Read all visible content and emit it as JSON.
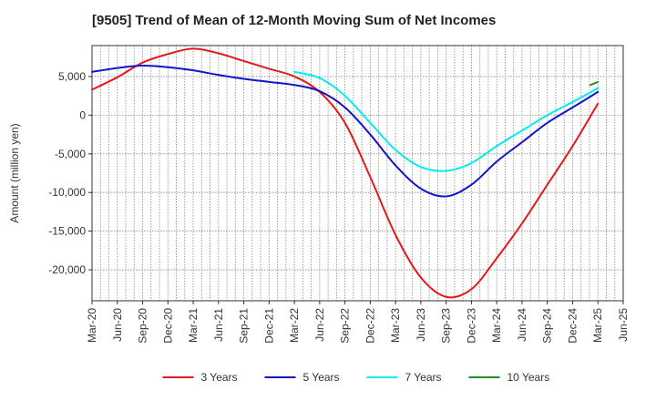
{
  "chart_data": {
    "type": "line",
    "title": "[9505]  Trend of Mean of 12-Month Moving Sum of Net Incomes",
    "ylabel": "Amount (million yen)",
    "xlabel": "",
    "ylim": [
      -24000,
      9000
    ],
    "yticks": [
      5000,
      0,
      -5000,
      -10000,
      -15000,
      -20000
    ],
    "ytick_labels": [
      "5,000",
      "0",
      "-5,000",
      "-10,000",
      "-15,000",
      "-20,000"
    ],
    "x_categories": [
      "Mar-20",
      "Jun-20",
      "Sep-20",
      "Dec-20",
      "Mar-21",
      "Jun-21",
      "Sep-21",
      "Dec-21",
      "Mar-22",
      "Jun-22",
      "Sep-22",
      "Dec-22",
      "Mar-23",
      "Jun-23",
      "Sep-23",
      "Dec-23",
      "Mar-24",
      "Jun-24",
      "Sep-24",
      "Dec-24",
      "Mar-25",
      "Jun-25"
    ],
    "grid": true,
    "legend_position": "bottom",
    "series": [
      {
        "name": "3 Years",
        "color": "#e31a1c",
        "points": [
          [
            0,
            3300
          ],
          [
            1,
            4900
          ],
          [
            2,
            6800
          ],
          [
            3,
            7900
          ],
          [
            4,
            8600
          ],
          [
            5,
            8000
          ],
          [
            6,
            7000
          ],
          [
            7,
            6000
          ],
          [
            8,
            5000
          ],
          [
            9,
            3000
          ],
          [
            10,
            -1000
          ],
          [
            11,
            -8000
          ],
          [
            12,
            -15500
          ],
          [
            13,
            -21000
          ],
          [
            14,
            -23500
          ],
          [
            15,
            -22500
          ],
          [
            16,
            -18500
          ],
          [
            17,
            -14000
          ],
          [
            18,
            -9000
          ],
          [
            19,
            -4000
          ],
          [
            20,
            1500
          ]
        ]
      },
      {
        "name": "5 Years",
        "color": "#1414c8",
        "points": [
          [
            0,
            5600
          ],
          [
            1,
            6100
          ],
          [
            2,
            6400
          ],
          [
            3,
            6200
          ],
          [
            4,
            5800
          ],
          [
            5,
            5200
          ],
          [
            6,
            4700
          ],
          [
            7,
            4300
          ],
          [
            8,
            3900
          ],
          [
            9,
            3100
          ],
          [
            10,
            1000
          ],
          [
            11,
            -2500
          ],
          [
            12,
            -6500
          ],
          [
            13,
            -9500
          ],
          [
            14,
            -10500
          ],
          [
            15,
            -9000
          ],
          [
            16,
            -6000
          ],
          [
            17,
            -3500
          ],
          [
            18,
            -1000
          ],
          [
            19,
            1000
          ],
          [
            20,
            3000
          ]
        ]
      },
      {
        "name": "7 Years",
        "color": "#00eeee",
        "points": [
          [
            8,
            5600
          ],
          [
            9,
            4800
          ],
          [
            10,
            2500
          ],
          [
            11,
            -1000
          ],
          [
            12,
            -4500
          ],
          [
            13,
            -6700
          ],
          [
            14,
            -7200
          ],
          [
            15,
            -6200
          ],
          [
            16,
            -4000
          ],
          [
            17,
            -2000
          ],
          [
            18,
            0
          ],
          [
            19,
            1700
          ],
          [
            20,
            3500
          ]
        ]
      },
      {
        "name": "10 Years",
        "color": "#228b22",
        "points": [
          [
            19.7,
            3900
          ],
          [
            20,
            4300
          ]
        ]
      }
    ]
  }
}
